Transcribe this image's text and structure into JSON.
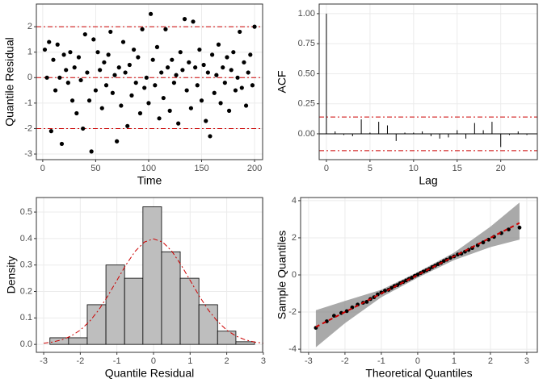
{
  "chart_data": [
    {
      "type": "scatter",
      "xlabel": "Time",
      "ylabel": "Quantile Residual",
      "color": "#000000",
      "line_color": "#cc0000",
      "grid": true,
      "x": [
        2,
        4,
        6,
        8,
        10,
        12,
        14,
        16,
        18,
        20,
        22,
        24,
        26,
        28,
        30,
        32,
        34,
        36,
        38,
        40,
        42,
        44,
        46,
        48,
        50,
        52,
        54,
        56,
        58,
        60,
        62,
        64,
        66,
        68,
        70,
        72,
        74,
        76,
        78,
        80,
        82,
        84,
        86,
        88,
        90,
        92,
        94,
        96,
        98,
        100,
        102,
        104,
        106,
        108,
        110,
        112,
        114,
        116,
        118,
        120,
        122,
        124,
        126,
        128,
        130,
        132,
        134,
        136,
        138,
        140,
        142,
        144,
        146,
        148,
        150,
        152,
        154,
        156,
        158,
        160,
        162,
        164,
        166,
        168,
        170,
        172,
        174,
        176,
        178,
        180,
        182,
        184,
        186,
        188,
        190,
        192,
        194,
        196,
        198,
        200
      ],
      "y": [
        1.1,
        0.0,
        1.4,
        -2.1,
        0.7,
        -0.5,
        1.3,
        0.0,
        -2.6,
        0.9,
        0.3,
        -0.2,
        1.0,
        -0.9,
        0.4,
        -1.4,
        0.8,
        -0.1,
        -2.0,
        1.7,
        0.2,
        -0.9,
        -2.9,
        1.5,
        -0.5,
        1.0,
        0.3,
        -1.2,
        0.6,
        -0.3,
        0.9,
        1.8,
        -0.6,
        0.1,
        -2.5,
        0.4,
        -1.1,
        1.4,
        0.2,
        -1.9,
        0.5,
        -0.7,
        1.1,
        -0.2,
        0.8,
        -1.4,
        1.9,
        -0.4,
        0.0,
        -1.0,
        2.5,
        0.7,
        -0.3,
        1.2,
        -1.6,
        0.2,
        -0.8,
        1.9,
        0.4,
        -1.3,
        0.7,
        -0.2,
        0.1,
        -1.8,
        1.0,
        0.3,
        2.3,
        -0.5,
        0.6,
        -1.2,
        2.2,
        0.4,
        -0.3,
        1.1,
        -0.9,
        0.5,
        -1.7,
        0.2,
        -2.3,
        0.9,
        -0.6,
        0.1,
        1.3,
        -1.0,
        0.4,
        -0.2,
        0.8,
        -1.3,
        0.3,
        1.0,
        -0.5,
        0.0,
        1.8,
        -0.4,
        0.6,
        -1.1,
        0.2,
        0.9,
        -0.3,
        2.0
      ],
      "hlines": [
        -2,
        0,
        2
      ],
      "xlim": [
        -6,
        207.6
      ],
      "ylim": [
        -3.22,
        2.89
      ],
      "xticks": [
        0,
        50,
        100,
        150,
        200
      ],
      "yticks": [
        -3,
        -2,
        -1,
        0,
        1,
        2
      ]
    },
    {
      "type": "acf",
      "xlabel": "Lag",
      "ylabel": "ACF",
      "color": "#000000",
      "line_color": "#cc0000",
      "grid": true,
      "x": [
        0,
        1,
        2,
        3,
        4,
        5,
        6,
        7,
        8,
        9,
        10,
        11,
        12,
        13,
        14,
        15,
        16,
        17,
        18,
        19,
        20,
        21,
        22,
        23
      ],
      "values": [
        1.0,
        0.02,
        -0.01,
        -0.02,
        0.12,
        0.01,
        0.1,
        0.07,
        -0.06,
        0.01,
        0.01,
        0.02,
        -0.02,
        -0.04,
        -0.03,
        0.03,
        -0.04,
        0.09,
        0.03,
        0.1,
        -0.11,
        -0.01,
        0.02,
        -0.01
      ],
      "confidence": [
        0.14,
        -0.14
      ],
      "xlim": [
        -0.83,
        24.2
      ],
      "ylim": [
        -0.215,
        1.08
      ],
      "xticks": [
        0,
        5,
        10,
        15,
        20
      ],
      "yticks": [
        {
          "value": 0,
          "label": "0.00"
        },
        0.25,
        {
          "value": 0.5,
          "label": "0.50"
        },
        0.75,
        {
          "value": 1,
          "label": "1.00"
        }
      ]
    },
    {
      "type": "histogram",
      "xlabel": "Quantile Residual",
      "ylabel": "Density",
      "color": "#bebebe",
      "line_color": "#cc0000",
      "grid": true,
      "bins": [
        -2.83,
        -2.32,
        -1.81,
        -1.3,
        -0.79,
        -0.29,
        0.22,
        0.73,
        1.24,
        1.75,
        2.25,
        2.76
      ],
      "values": [
        0.025,
        0.025,
        0.15,
        0.3,
        0.25,
        0.52,
        0.35,
        0.25,
        0.15,
        0.05,
        0.01
      ],
      "density": {
        "x": [
          -3,
          -2.75,
          -2.5,
          -2.25,
          -2,
          -1.75,
          -1.5,
          -1.25,
          -1,
          -0.75,
          -0.5,
          -0.25,
          0,
          0.25,
          0.5,
          0.75,
          1,
          1.25,
          1.5,
          1.75,
          2,
          2.25,
          2.5,
          2.75,
          3
        ],
        "y": [
          0.0044,
          0.0091,
          0.0175,
          0.0317,
          0.054,
          0.0863,
          0.1295,
          0.1826,
          0.242,
          0.3011,
          0.3521,
          0.3867,
          0.3989,
          0.3867,
          0.3521,
          0.3011,
          0.242,
          0.1826,
          0.1295,
          0.0863,
          0.054,
          0.0317,
          0.0175,
          0.0091,
          0.0044
        ]
      },
      "xlim": [
        -3.2,
        2.98
      ],
      "ylim": [
        -0.03,
        0.555
      ],
      "xticks": [
        -3,
        -2,
        -1,
        0,
        1,
        2,
        3
      ],
      "yticks": [
        {
          "value": 0,
          "label": "0.0"
        },
        0.1,
        0.2,
        0.3,
        0.4,
        0.5
      ]
    },
    {
      "type": "qq",
      "xlabel": "Theoretical Quantiles",
      "ylabel": "Sample Quantiles",
      "color": "#000000",
      "line_color": "#cc0000",
      "band_color": "#8c8c8c",
      "grid": true,
      "x": [
        -2.8,
        -2.5,
        -2.3,
        -2.1,
        -1.95,
        -1.8,
        -1.65,
        -1.5,
        -1.4,
        -1.3,
        -1.2,
        -1.1,
        -1.0,
        -0.9,
        -0.8,
        -0.72,
        -0.64,
        -0.56,
        -0.48,
        -0.4,
        -0.32,
        -0.24,
        -0.16,
        -0.08,
        0,
        0.08,
        0.16,
        0.24,
        0.32,
        0.4,
        0.48,
        0.56,
        0.64,
        0.72,
        0.8,
        0.9,
        1.0,
        1.1,
        1.2,
        1.3,
        1.4,
        1.5,
        1.65,
        1.8,
        1.95,
        2.1,
        2.3,
        2.5,
        2.8
      ],
      "y": [
        -2.85,
        -2.5,
        -2.2,
        -2.05,
        -1.95,
        -1.75,
        -1.6,
        -1.5,
        -1.45,
        -1.3,
        -1.2,
        -1.05,
        -0.95,
        -0.85,
        -0.8,
        -0.7,
        -0.6,
        -0.55,
        -0.45,
        -0.38,
        -0.3,
        -0.22,
        -0.15,
        -0.05,
        0.02,
        0.1,
        0.18,
        0.25,
        0.32,
        0.42,
        0.5,
        0.58,
        0.65,
        0.75,
        0.82,
        0.92,
        1.0,
        1.1,
        1.15,
        1.25,
        1.35,
        1.45,
        1.6,
        1.75,
        1.9,
        2.05,
        2.25,
        2.45,
        2.55
      ],
      "band": {
        "x": [
          -2.8,
          -2,
          -1,
          0,
          1,
          2,
          2.8
        ],
        "lower": [
          -3.9,
          -2.6,
          -1.2,
          -0.15,
          0.8,
          1.5,
          1.9
        ],
        "upper": [
          -1.9,
          -1.4,
          -0.8,
          0.15,
          1.2,
          2.6,
          3.9
        ]
      },
      "reference_line": {
        "x": [
          -2.8,
          2.8
        ],
        "y": [
          -2.8,
          2.8
        ]
      },
      "xlim": [
        -3.22,
        3.29
      ],
      "ylim": [
        -4.17,
        4.17
      ],
      "xticks": [
        -3,
        -2,
        -1,
        0,
        1,
        2,
        3
      ],
      "yticks": [
        -4,
        -2,
        0,
        2,
        4
      ]
    }
  ]
}
